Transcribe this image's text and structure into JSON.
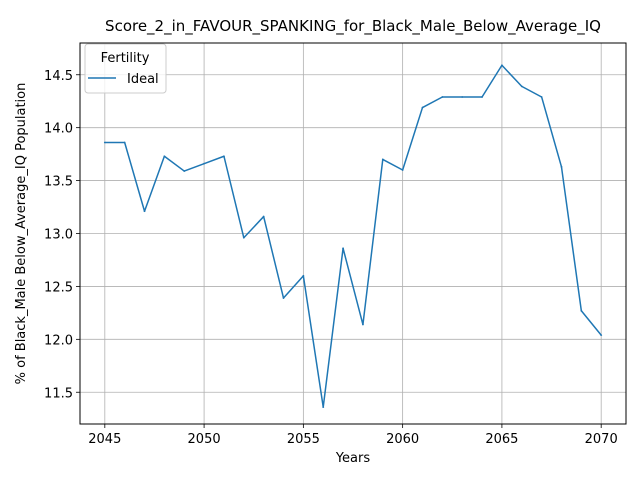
{
  "chart_data": {
    "type": "line",
    "title": "Score_2_in_FAVOUR_SPANKING_for_Black_Male_Below_Average_IQ",
    "xlabel": "Years",
    "ylabel": "% of Black_Male Below_Average_IQ Population",
    "xlim": [
      2043.75,
      2071.25
    ],
    "ylim": [
      11.2,
      14.8
    ],
    "x_ticks": [
      2045,
      2050,
      2055,
      2060,
      2065,
      2070
    ],
    "y_ticks": [
      11.5,
      12.0,
      12.5,
      13.0,
      13.5,
      14.0,
      14.5
    ],
    "x_tick_labels": [
      "2045",
      "2050",
      "2055",
      "2060",
      "2065",
      "2070"
    ],
    "y_tick_labels": [
      "11.5",
      "12.0",
      "12.5",
      "13.0",
      "13.5",
      "14.0",
      "14.5"
    ],
    "grid": true,
    "legend": {
      "title": "Fertility",
      "position": "upper-left"
    },
    "series": [
      {
        "name": "Ideal",
        "color": "#1f77b4",
        "x": [
          2045,
          2046,
          2047,
          2048,
          2049,
          2050,
          2051,
          2052,
          2053,
          2054,
          2055,
          2056,
          2057,
          2058,
          2059,
          2060,
          2061,
          2062,
          2063,
          2064,
          2065,
          2066,
          2067,
          2068,
          2069,
          2070
        ],
        "y": [
          13.86,
          13.86,
          13.21,
          13.73,
          13.59,
          13.66,
          13.73,
          12.96,
          13.16,
          12.39,
          12.6,
          11.36,
          12.86,
          12.14,
          13.7,
          13.6,
          14.19,
          14.29,
          14.29,
          14.29,
          14.59,
          14.39,
          14.29,
          13.63,
          12.27,
          12.04
        ]
      }
    ]
  }
}
